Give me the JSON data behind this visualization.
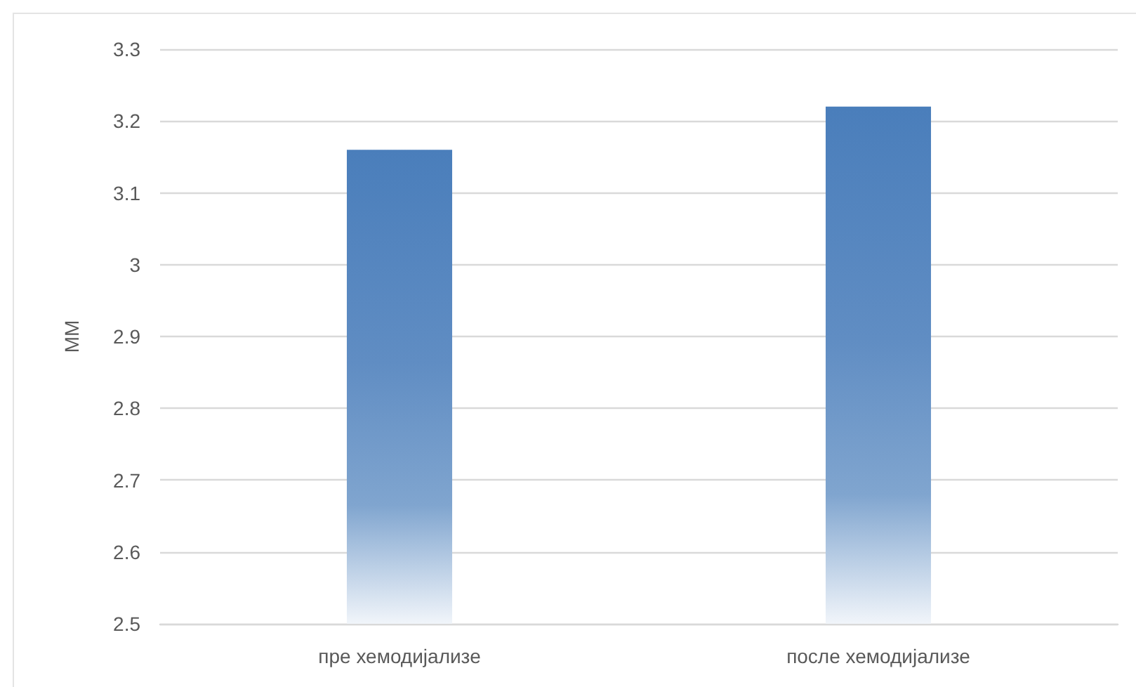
{
  "chart_data": {
    "type": "bar",
    "ylabel": "ММ",
    "categories": [
      "пре хемодијализе",
      "после хемодијализе"
    ],
    "values": [
      3.16,
      3.22
    ],
    "color": "#4a7ebb",
    "ylim": [
      2.5,
      3.3
    ],
    "yticks": [
      2.5,
      2.6,
      2.7,
      2.8,
      2.9,
      3,
      3.1,
      3.2,
      3.3
    ],
    "grid": "y"
  }
}
